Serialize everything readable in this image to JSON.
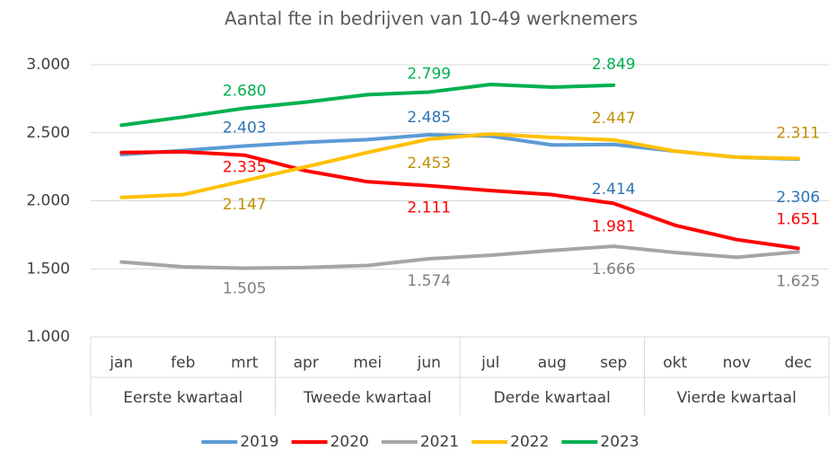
{
  "chart_data": {
    "type": "line",
    "title": "Aantal fte in bedrijven van 10-49 werknemers",
    "categories": [
      "jan",
      "feb",
      "mrt",
      "apr",
      "mei",
      "jun",
      "jul",
      "aug",
      "sep",
      "okt",
      "nov",
      "dec"
    ],
    "category_groups": [
      "Eerste kwartaal",
      "Tweede kwartaal",
      "Derde kwartaal",
      "Vierde kwartaal"
    ],
    "ylim": [
      1000,
      3000
    ],
    "yticks": [
      {
        "value": 1000,
        "label": "1.000"
      },
      {
        "value": 1500,
        "label": "1.500"
      },
      {
        "value": 2000,
        "label": "2.000"
      },
      {
        "value": 2500,
        "label": "2.500"
      },
      {
        "value": 3000,
        "label": "3.000"
      }
    ],
    "grid": true,
    "legend": "bottom",
    "series": [
      {
        "name": "2019",
        "color": "#5b9bd5",
        "label_color": "#2e75b6",
        "values": [
          2340,
          2370,
          2403,
          2430,
          2450,
          2485,
          2475,
          2410,
          2414,
          2365,
          2320,
          2306
        ],
        "value_labels": [
          null,
          null,
          "2.403",
          null,
          null,
          "2.485",
          null,
          null,
          "2.414",
          null,
          null,
          "2.306"
        ]
      },
      {
        "name": "2020",
        "color": "#ff0000",
        "label_color": "#ff0000",
        "values": [
          2355,
          2360,
          2335,
          2220,
          2140,
          2111,
          2075,
          2045,
          1981,
          1820,
          1715,
          1651
        ],
        "value_labels": [
          null,
          null,
          "2.335",
          null,
          null,
          "2.111",
          null,
          null,
          "1.981",
          null,
          null,
          "1.651"
        ]
      },
      {
        "name": "2021",
        "color": "#a5a5a5",
        "label_color": "#7f7f7f",
        "values": [
          1550,
          1515,
          1505,
          1510,
          1525,
          1574,
          1600,
          1635,
          1666,
          1620,
          1585,
          1625
        ],
        "value_labels": [
          null,
          null,
          "1.505",
          null,
          null,
          "1.574",
          null,
          null,
          "1.666",
          null,
          null,
          "1.625"
        ]
      },
      {
        "name": "2022",
        "color": "#ffc000",
        "label_color": "#bf9000",
        "values": [
          2025,
          2045,
          2147,
          2250,
          2355,
          2453,
          2490,
          2465,
          2447,
          2365,
          2320,
          2311
        ],
        "value_labels": [
          null,
          null,
          "2.147",
          null,
          null,
          "2.453",
          null,
          null,
          "2.447",
          null,
          null,
          "2.311"
        ]
      },
      {
        "name": "2023",
        "color": "#00b050",
        "label_color": "#00b050",
        "values": [
          2555,
          2615,
          2680,
          2725,
          2780,
          2799,
          2855,
          2835,
          2849,
          null,
          null,
          null
        ],
        "value_labels": [
          null,
          null,
          "2.680",
          null,
          null,
          "2.799",
          null,
          null,
          "2.849",
          null,
          null,
          null
        ]
      }
    ]
  }
}
